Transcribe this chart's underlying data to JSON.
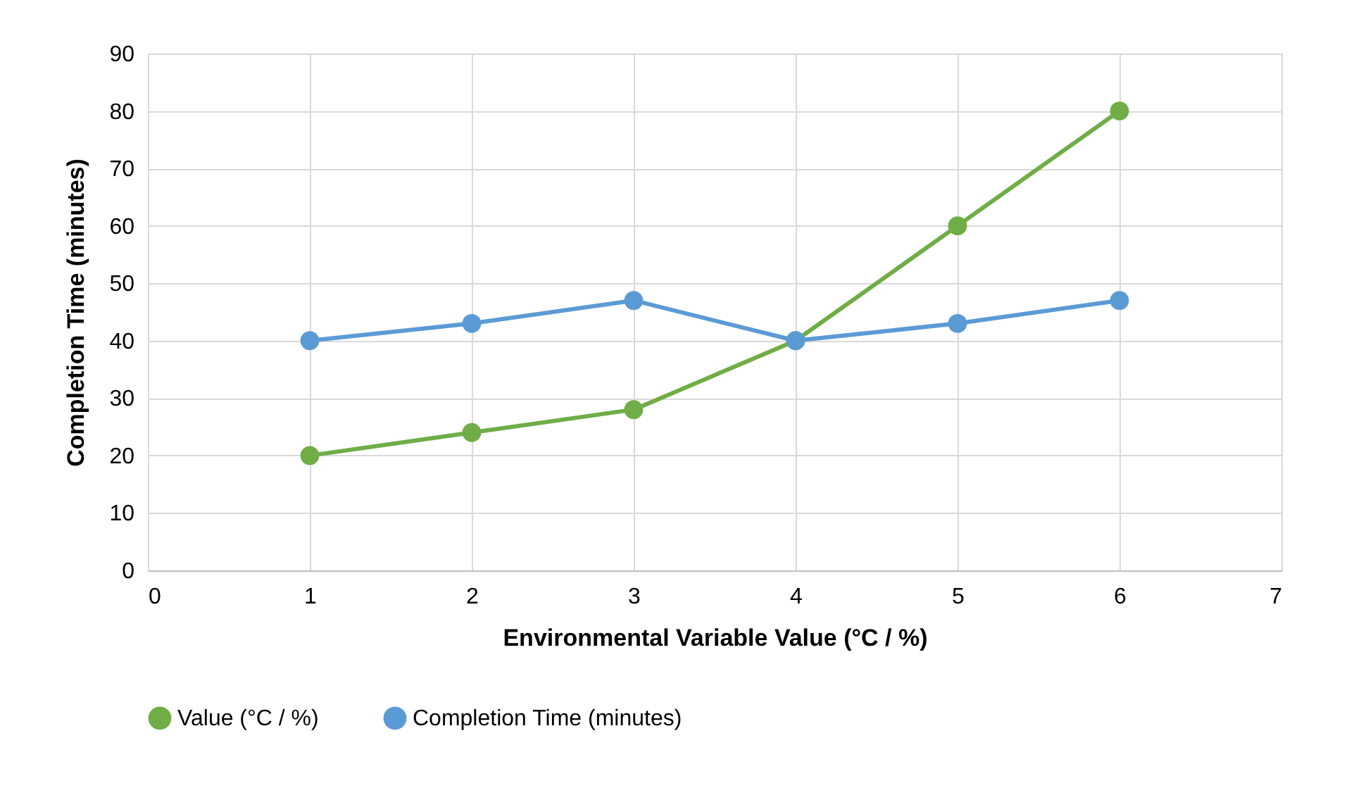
{
  "chart_data": {
    "type": "line",
    "xlabel": "Environmental Variable Value (°C / %)",
    "ylabel": "Completion Time (minutes)",
    "x": [
      1,
      2,
      3,
      4,
      5,
      6
    ],
    "series": [
      {
        "name": "Value (°C / %)",
        "color": "#70ad47",
        "values": [
          20,
          24,
          28,
          40,
          60,
          80
        ]
      },
      {
        "name": "Completion Time (minutes)",
        "color": "#5b9bd5",
        "values": [
          40,
          43,
          47,
          40,
          43,
          47
        ]
      }
    ],
    "xlim": [
      0,
      7
    ],
    "xticks": [
      0,
      1,
      2,
      3,
      4,
      5,
      6,
      7
    ],
    "ylim": [
      0,
      90
    ],
    "yticks": [
      0,
      10,
      20,
      30,
      40,
      50,
      60,
      70,
      80,
      90
    ],
    "grid": true,
    "legend": "bottom",
    "marker": "circle",
    "line_style": "solid"
  }
}
